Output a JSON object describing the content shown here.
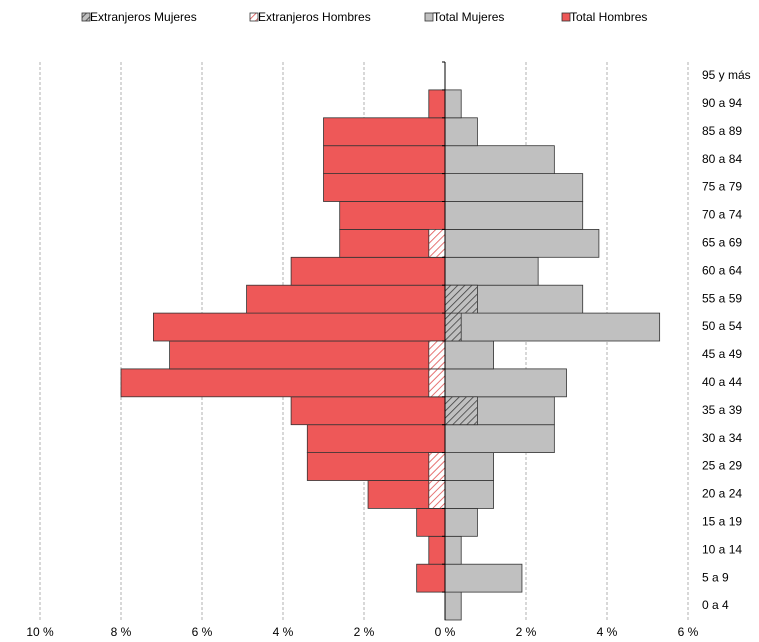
{
  "chart_data": {
    "type": "pyramid",
    "categories": [
      "0 a 4",
      "5 a 9",
      "10 a 14",
      "15 a 19",
      "20 a 24",
      "25 a 29",
      "30 a 34",
      "35 a 39",
      "40 a 44",
      "45 a 49",
      "50 a 54",
      "55 a 59",
      "60 a 64",
      "65 a 69",
      "70 a 74",
      "75 a 79",
      "80 a 84",
      "85 a 89",
      "90 a 94",
      "95 y más"
    ],
    "series": [
      {
        "name": "Extranjeros Mujeres",
        "color": "#404040",
        "fill": "#c0c0c0",
        "hatch": true,
        "values": [
          0,
          0,
          0,
          0,
          0,
          0,
          0,
          0.8,
          0,
          0,
          0.4,
          0.8,
          0,
          0,
          0,
          0,
          0,
          0,
          0,
          0
        ]
      },
      {
        "name": "Extranjeros Hombres",
        "color": "#e05050",
        "fill": "#ffffff",
        "hatch": true,
        "values": [
          0,
          0,
          0,
          0,
          -0.4,
          -0.4,
          0,
          0,
          -0.4,
          -0.4,
          0,
          0,
          0,
          -0.4,
          0,
          0,
          0,
          0,
          0,
          0
        ]
      },
      {
        "name": "Total Mujeres",
        "color": "#c0c0c0",
        "fill": "#c0c0c0",
        "hatch": false,
        "values": [
          0.4,
          1.9,
          0.4,
          0.8,
          1.2,
          1.2,
          2.7,
          2.7,
          3.0,
          1.2,
          5.3,
          3.4,
          2.3,
          3.8,
          3.4,
          3.4,
          2.7,
          0.8,
          0.4,
          0
        ]
      },
      {
        "name": "Total Hombres",
        "color": "#ee5858",
        "fill": "#ee5858",
        "hatch": false,
        "values": [
          0,
          -0.7,
          -0.4,
          -0.7,
          -1.9,
          -3.4,
          -3.4,
          -3.8,
          -8.0,
          -6.8,
          -7.2,
          -4.9,
          -3.8,
          -2.6,
          -2.6,
          -3.0,
          -3.0,
          -3.0,
          -0.4,
          0
        ]
      }
    ],
    "xlim": [
      -10,
      6
    ],
    "xticks": [
      {
        "value": -10,
        "label": "10 %"
      },
      {
        "value": -8,
        "label": "8 %"
      },
      {
        "value": -6,
        "label": "6 %"
      },
      {
        "value": -4,
        "label": "4 %"
      },
      {
        "value": -2,
        "label": "2 %"
      },
      {
        "value": 0,
        "label": "0 %"
      },
      {
        "value": 2,
        "label": "2 %"
      },
      {
        "value": 4,
        "label": "4 %"
      },
      {
        "value": 6,
        "label": "6 %"
      }
    ],
    "grid": true
  }
}
